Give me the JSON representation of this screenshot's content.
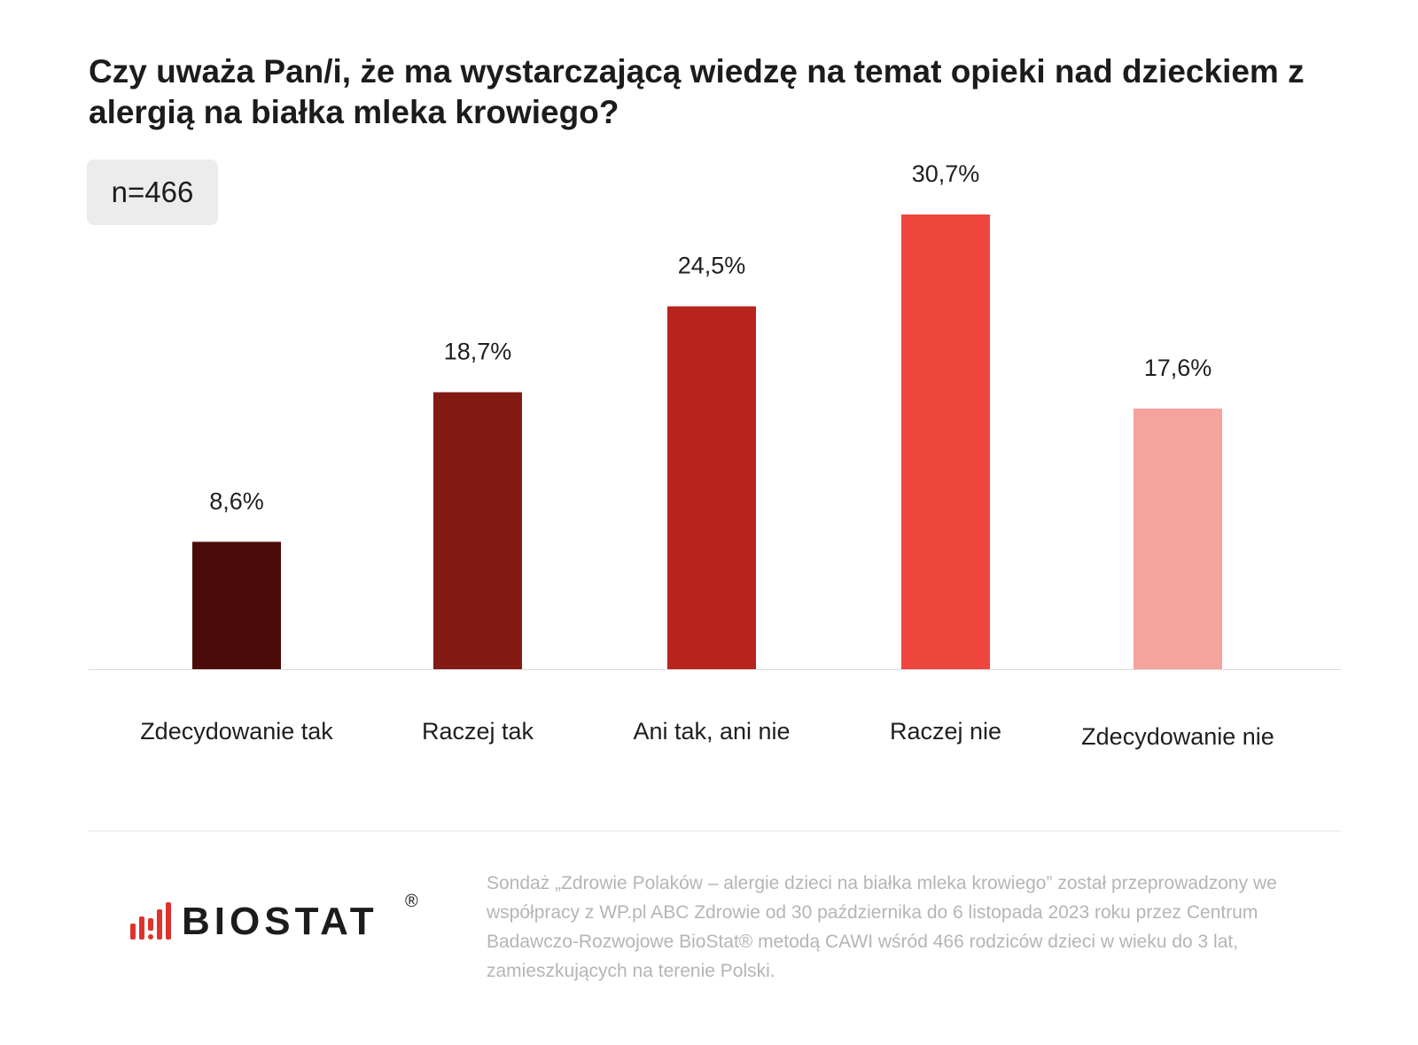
{
  "title": "Czy uważa Pan/i, że ma wystarczającą wiedzę na temat opieki nad dzieckiem z alergią na białka mleka krowiego?",
  "sample_badge": "n=466",
  "chart_data": {
    "type": "bar",
    "categories": [
      "Zdecydowanie tak",
      "Raczej tak",
      "Ani tak, ani nie",
      "Raczej nie",
      "Zdecydowanie nie"
    ],
    "values": [
      8.6,
      18.7,
      24.5,
      30.7,
      17.6
    ],
    "value_labels": [
      "8,6%",
      "18,7%",
      "24,5%",
      "30,7%",
      "17,6%"
    ],
    "colors": [
      "#4b0b09",
      "#831a14",
      "#b8231e",
      "#ef463d",
      "#f5a39d"
    ],
    "ylim": [
      0,
      30.7
    ],
    "grid": false,
    "legend": "none"
  },
  "logo": {
    "text": "BIOSTAT",
    "reg": "®",
    "icon": "bar-chart-logo-icon",
    "accent_color": "#e0322c"
  },
  "footnote": "Sondaż „Zdrowie Polaków – alergie dzieci na białka mleka krowiego” został przeprowadzony we współpracy z WP.pl ABC Zdrowie od 30 października do 6 listopada 2023 roku przez Centrum Badawczo-Rozwojowe BioStat® metodą CAWI wśród 466 rodziców dzieci w wieku do 3 lat, zamieszkujących na terenie Polski."
}
